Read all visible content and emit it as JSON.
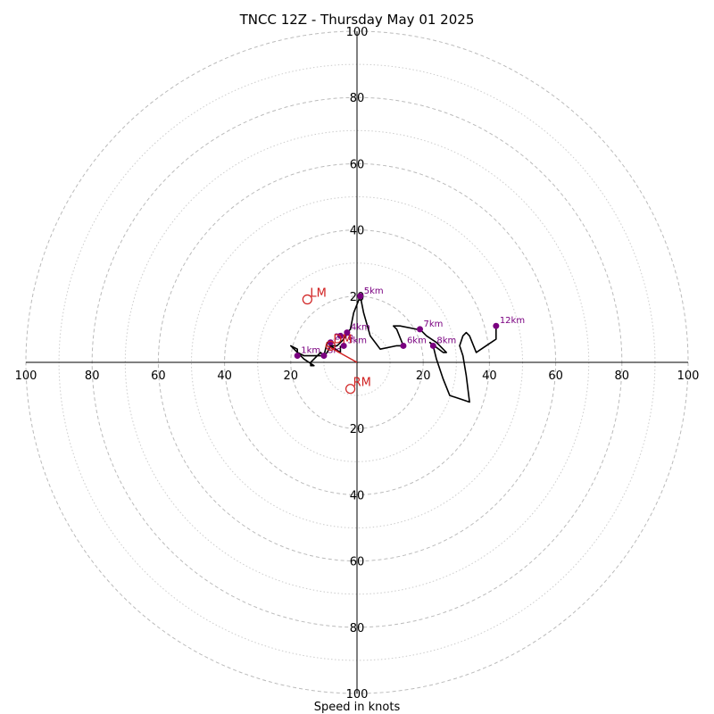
{
  "chart_data": {
    "type": "hodograph",
    "title": "TNCC 12Z - Thursday May 01 2025",
    "xlabel": "Speed in knots",
    "units": "knots",
    "rmax": 100,
    "rings_major": [
      20,
      40,
      60,
      80,
      100
    ],
    "rings_minor": [
      10,
      30,
      50,
      70,
      90
    ],
    "tick_values": [
      100,
      80,
      60,
      40,
      20
    ],
    "grid": true,
    "colors": {
      "trace": "#000000",
      "height_points": "#7a0080",
      "motion_markers": "#d02020",
      "grid": "#bbbbbb"
    },
    "trace": [
      [
        -5,
        5
      ],
      [
        -5,
        3
      ],
      [
        -8,
        5
      ],
      [
        -9,
        6
      ],
      [
        -10,
        2
      ],
      [
        -11,
        3
      ],
      [
        -13,
        1
      ],
      [
        -14,
        0
      ],
      [
        -14,
        -1
      ],
      [
        -13,
        -1
      ],
      [
        -16,
        1
      ],
      [
        -19,
        4
      ],
      [
        -20,
        5
      ],
      [
        -18,
        4
      ],
      [
        -18,
        3
      ],
      [
        -16,
        2
      ],
      [
        -12,
        2
      ],
      [
        -10,
        2
      ],
      [
        -9,
        3
      ],
      [
        -8,
        5
      ],
      [
        -6,
        5
      ],
      [
        -4,
        7
      ],
      [
        -3,
        9
      ],
      [
        -2,
        10
      ],
      [
        -1,
        15
      ],
      [
        1,
        20
      ],
      [
        2,
        15
      ],
      [
        4,
        8
      ],
      [
        7,
        4
      ],
      [
        12,
        5
      ],
      [
        14,
        5
      ],
      [
        12,
        10
      ],
      [
        11,
        11
      ],
      [
        13,
        11
      ],
      [
        18,
        10
      ],
      [
        19,
        10
      ],
      [
        21,
        8
      ],
      [
        24,
        6
      ],
      [
        25,
        5
      ],
      [
        27,
        3
      ],
      [
        26,
        3
      ],
      [
        22,
        6
      ],
      [
        23,
        5
      ],
      [
        24,
        1
      ],
      [
        26,
        -5
      ],
      [
        28,
        -10
      ],
      [
        31,
        -11
      ],
      [
        34,
        -12
      ],
      [
        33,
        -4
      ],
      [
        32,
        2
      ],
      [
        31,
        5
      ],
      [
        32,
        8
      ],
      [
        33,
        9
      ],
      [
        34,
        8
      ],
      [
        36,
        3
      ],
      [
        39,
        5
      ],
      [
        42,
        7
      ],
      [
        42,
        11
      ]
    ],
    "height_points": [
      {
        "label": "1km",
        "u": -18,
        "v": 2
      },
      {
        "label": "2km",
        "u": -8,
        "v": 6
      },
      {
        "label": "3km",
        "u": -4,
        "v": 5
      },
      {
        "label": "4km",
        "u": -3,
        "v": 9
      },
      {
        "label": "5km",
        "u": 1,
        "v": 20
      },
      {
        "label": "6km",
        "u": 14,
        "v": 5
      },
      {
        "label": "7km",
        "u": 19,
        "v": 10
      },
      {
        "label": "8km",
        "u": 23,
        "v": 5
      },
      {
        "label": "12km",
        "u": 42,
        "v": 11
      },
      {
        "label": "Sfc",
        "u": -10,
        "v": 2
      },
      {
        "label": "",
        "u": -5,
        "v": 8
      }
    ],
    "motion_markers": [
      {
        "label": "LM",
        "u": -15,
        "v": 19
      },
      {
        "label": "RM",
        "u": -2,
        "v": -8
      },
      {
        "label": "DM",
        "u": -8,
        "v": 5
      }
    ],
    "storm_motion_vector": {
      "u": -9,
      "v": 5
    }
  }
}
